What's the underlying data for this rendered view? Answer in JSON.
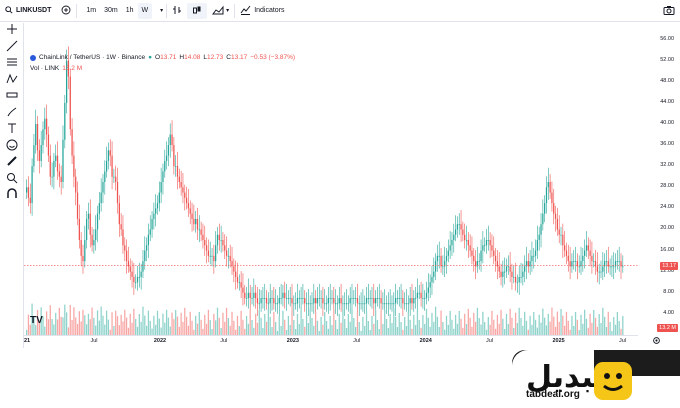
{
  "toolbar": {
    "symbol": "LINKUSDT",
    "timeframes": [
      "1m",
      "30m",
      "1h",
      "W"
    ],
    "active_timeframe": "W",
    "indicators_label": "Indicators"
  },
  "legend": {
    "title": "ChainLink / TetherUS · 1W · Binance",
    "o_label": "O",
    "o_val": "13.71",
    "h_label": "H",
    "h_val": "14.08",
    "l_label": "L",
    "l_val": "12.73",
    "c_label": "C",
    "c_val": "13.17",
    "change": "−0.53 (−3.87%)",
    "vol_label": "Vol · LINK",
    "vol_val": "13.2 M"
  },
  "price_badge": "13.17",
  "volume_badge": "13.2 M",
  "colors": {
    "up": "#26a69a",
    "down": "#ef5350",
    "vol_up": "#8fd3cb",
    "vol_down": "#f7a8a6",
    "price_line": "#ef5350"
  },
  "watermark": "TV",
  "logo": {
    "text": "تبدیل",
    "url": "tabdeal.org"
  },
  "chart_data": {
    "type": "candlestick",
    "y_ticks": [
      "56.00",
      "52.00",
      "48.00",
      "44.00",
      "40.00",
      "36.00",
      "32.00",
      "28.00",
      "24.00",
      "20.00",
      "16.00",
      "12.00",
      "8.00",
      "4.00"
    ],
    "x_ticks": [
      {
        "label": "21",
        "bold": true
      },
      {
        "label": "Jul",
        "bold": false
      },
      {
        "label": "2022",
        "bold": true
      },
      {
        "label": "Jul",
        "bold": false
      },
      {
        "label": "2023",
        "bold": true
      },
      {
        "label": "Jul",
        "bold": false
      },
      {
        "label": "2024",
        "bold": true
      },
      {
        "label": "Jul",
        "bold": false
      },
      {
        "label": "2025",
        "bold": true
      },
      {
        "label": "Jul",
        "bold": false
      }
    ],
    "closes": [
      28,
      26,
      25,
      32,
      36,
      40,
      35,
      33,
      36,
      39,
      41,
      38,
      34,
      30,
      30,
      33,
      34,
      31,
      30,
      29,
      37,
      44,
      52,
      49,
      39,
      34,
      30,
      27,
      22,
      18,
      15,
      14,
      18,
      22,
      23,
      19,
      17,
      18,
      20,
      23,
      25,
      27,
      29,
      31,
      33,
      35,
      34,
      30,
      30,
      29,
      25,
      21,
      20,
      17,
      16,
      14,
      13,
      12,
      11,
      10,
      10,
      11,
      11,
      12,
      14,
      16,
      17,
      19,
      20,
      22,
      23,
      24,
      25,
      27,
      29,
      31,
      33,
      34,
      36,
      38,
      36,
      32,
      32,
      30,
      29,
      28,
      27,
      26,
      25,
      24,
      23,
      22,
      21,
      22,
      20,
      20,
      19,
      18,
      17,
      16,
      15,
      15,
      15,
      14,
      17,
      19,
      18,
      18,
      17,
      16,
      15,
      15,
      14,
      13,
      12,
      11,
      10,
      10,
      9,
      8,
      7,
      7,
      8,
      7,
      7,
      8,
      7,
      6,
      6,
      7,
      7,
      7,
      6,
      6,
      7,
      7,
      6,
      6,
      6,
      7,
      7,
      8,
      7,
      7,
      7,
      7,
      6,
      6,
      6,
      7,
      7,
      7,
      7,
      6,
      6,
      6,
      6,
      6,
      7,
      6,
      7,
      7,
      7,
      6,
      6,
      6,
      7,
      7,
      7,
      6,
      6,
      6,
      7,
      6,
      6,
      6,
      6,
      6,
      7,
      7,
      7,
      7,
      6,
      6,
      6,
      6,
      6,
      7,
      7,
      7,
      7,
      6,
      7,
      7,
      7,
      6,
      6,
      6,
      6,
      6,
      6,
      6,
      6,
      7,
      7,
      7,
      7,
      6,
      6,
      6,
      6,
      7,
      6,
      7,
      7,
      8,
      8,
      7,
      7,
      7,
      8,
      9,
      10,
      11,
      12,
      14,
      15,
      15,
      13,
      13,
      14,
      15,
      16,
      17,
      18,
      19,
      20,
      21,
      21,
      20,
      19,
      18,
      18,
      17,
      16,
      15,
      14,
      13,
      14,
      14,
      16,
      17,
      17,
      18,
      18,
      17,
      16,
      15,
      14,
      13,
      12,
      11,
      12,
      12,
      13,
      13,
      12,
      11,
      11,
      10,
      10,
      11,
      11,
      12,
      13,
      14,
      13,
      14,
      15,
      15,
      16,
      18,
      19,
      21,
      23,
      25,
      28,
      29,
      27,
      25,
      23,
      22,
      20,
      19,
      19,
      17,
      16,
      15,
      14,
      13,
      14,
      14,
      14,
      13,
      13,
      14,
      15,
      16,
      17,
      16,
      15,
      14,
      14,
      13,
      12,
      12,
      12,
      13,
      14,
      14,
      13,
      13,
      13,
      13,
      14,
      14,
      14,
      13,
      13
    ],
    "price": 13.17
  }
}
